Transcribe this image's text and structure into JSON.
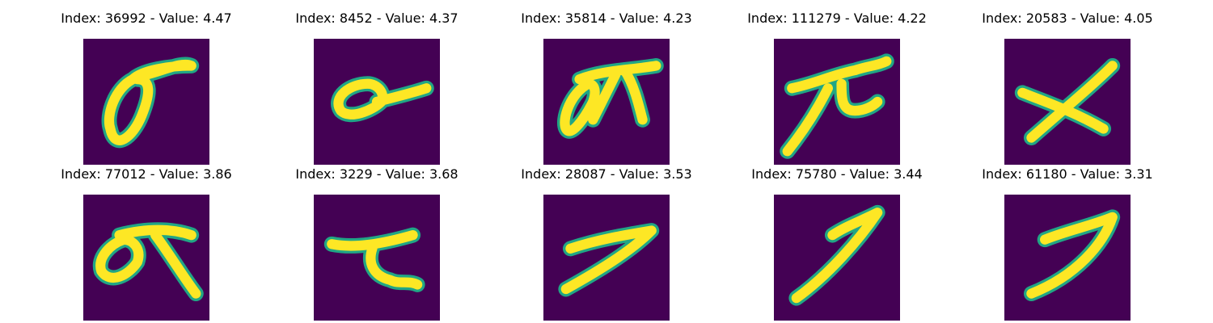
{
  "colors": {
    "background": "#440154",
    "stroke_mid": "#21a685",
    "stroke_core": "#fde725"
  },
  "panels": [
    {
      "title": "Index: 36992 - Value: 4.47",
      "glyph": "sigma-loop"
    },
    {
      "title": "Index: 8452 - Value: 4.37",
      "glyph": "small-loop-tail"
    },
    {
      "title": "Index: 35814 - Value: 4.23",
      "glyph": "loop-with-t"
    },
    {
      "title": "Index: 111279 - Value: 4.22",
      "glyph": "pi-like"
    },
    {
      "title": "Index: 20583 - Value: 4.05",
      "glyph": "x-cross"
    },
    {
      "title": "Index: 77012 - Value: 3.86",
      "glyph": "loop-with-diagonal"
    },
    {
      "title": "Index: 3229 - Value: 3.68",
      "glyph": "t-shape"
    },
    {
      "title": "Index: 28087 - Value: 3.53",
      "glyph": "seven-wide"
    },
    {
      "title": "Index: 75780 - Value: 3.44",
      "glyph": "seven-tall"
    },
    {
      "title": "Index: 61180 - Value: 3.31",
      "glyph": "seven-bold"
    }
  ]
}
